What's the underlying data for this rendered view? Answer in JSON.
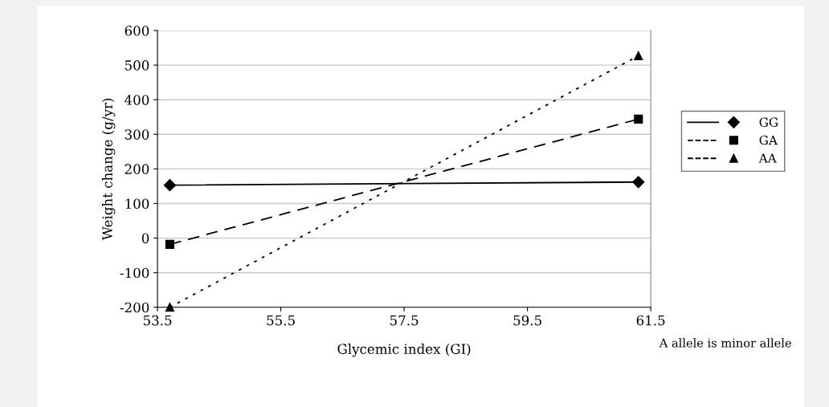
{
  "chart_data": {
    "type": "line",
    "xlabel": "Glycemic index (GI)",
    "ylabel": "Weight change (g/yr)",
    "x": [
      53.7,
      61.3
    ],
    "series": [
      {
        "name": "GG",
        "color": "#000000",
        "values": [
          153,
          162
        ],
        "marker": "diamond",
        "line_style": "solid"
      },
      {
        "name": "GA",
        "color": "#000000",
        "values": [
          -18,
          344
        ],
        "marker": "square",
        "line_style": "dashed"
      },
      {
        "name": "AA",
        "color": "#000000",
        "values": [
          -200,
          527
        ],
        "marker": "triangle",
        "line_style": "dotted"
      }
    ],
    "xlim": [
      53.5,
      61.5
    ],
    "xticks": [
      53.5,
      55.5,
      57.5,
      59.5,
      61.5
    ],
    "ylim": [
      -200,
      600
    ],
    "yticks": [
      -200,
      -100,
      0,
      100,
      200,
      300,
      400,
      500,
      600
    ],
    "grid": "y",
    "legend": "right",
    "annotations": [
      "A allele is minor allele"
    ]
  }
}
